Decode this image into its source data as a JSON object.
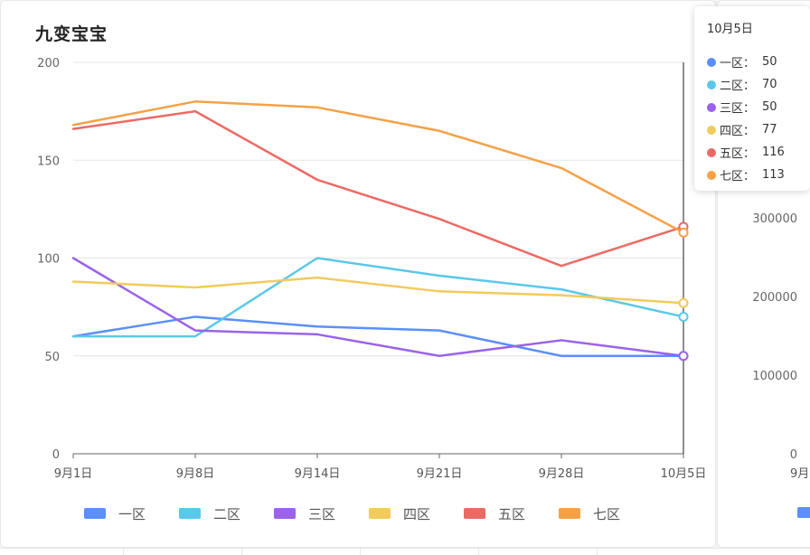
{
  "main_card": {
    "title": "九变宝宝"
  },
  "chart_data": {
    "type": "line",
    "title": "九变宝宝",
    "xlabel": "",
    "ylabel": "",
    "categories": [
      "9月1日",
      "9月8日",
      "9月14日",
      "9月21日",
      "9月28日",
      "10月5日"
    ],
    "ylim": [
      0,
      200
    ],
    "yticks": [
      0,
      50,
      100,
      150,
      200
    ],
    "grid": true,
    "legend_position": "bottom",
    "series": [
      {
        "name": "一区",
        "color": "#5b8ff9",
        "values": [
          60,
          70,
          65,
          63,
          50,
          50
        ]
      },
      {
        "name": "二区",
        "color": "#5ac8ea",
        "values": [
          60,
          60,
          100,
          91,
          84,
          70
        ]
      },
      {
        "name": "三区",
        "color": "#9a63ea",
        "values": [
          100,
          63,
          61,
          50,
          58,
          50
        ]
      },
      {
        "name": "四区",
        "color": "#f1cb5c",
        "values": [
          88,
          85,
          90,
          83,
          81,
          77
        ]
      },
      {
        "name": "五区",
        "color": "#ec6a64",
        "values": [
          166,
          175,
          140,
          120,
          96,
          116
        ]
      },
      {
        "name": "七区",
        "color": "#f5a147",
        "values": [
          168,
          180,
          177,
          165,
          146,
          113
        ]
      }
    ],
    "highlighted_category": "10月5日"
  },
  "tooltip": {
    "title": "10月5日",
    "separator": "：",
    "rows": [
      {
        "name": "一区",
        "value": "50",
        "color": "#5b8ff9"
      },
      {
        "name": "二区",
        "value": "70",
        "color": "#5ac8ea"
      },
      {
        "name": "三区",
        "value": "50",
        "color": "#9a63ea"
      },
      {
        "name": "四区",
        "value": "77",
        "color": "#f1cb5c"
      },
      {
        "name": "五区",
        "value": "116",
        "color": "#ec6a64"
      },
      {
        "name": "七区",
        "value": "113",
        "color": "#f5a147"
      }
    ]
  },
  "side_card": {
    "chart_data": {
      "type": "line",
      "yticks": [
        "300000",
        "200000",
        "100000",
        "0"
      ],
      "ylim": [
        0,
        300000
      ],
      "partial_x_label": "9月"
    },
    "legend_color": "#5b8ff9"
  }
}
